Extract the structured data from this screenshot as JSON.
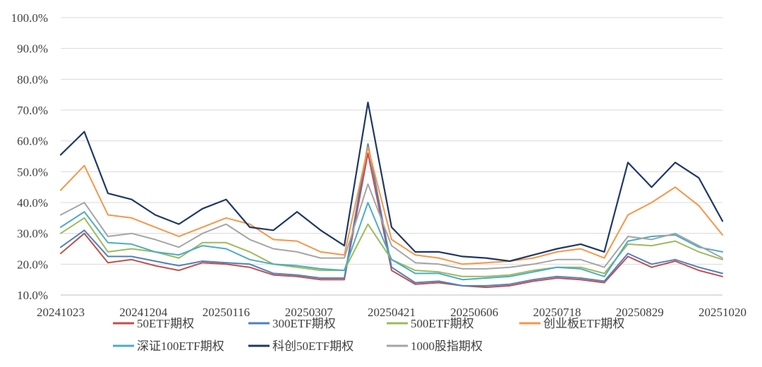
{
  "chart_data": {
    "type": "line",
    "title": "",
    "xlabel": "",
    "ylabel": "",
    "ylim": [
      0.1,
      1.0
    ],
    "y_ticks": [
      "100.0%",
      "90.0%",
      "80.0%",
      "70.0%",
      "60.0%",
      "50.0%",
      "40.0%",
      "30.0%",
      "20.0%",
      "10.0%"
    ],
    "x_ticks": [
      "20241023",
      "20241204",
      "20250116",
      "20250307",
      "20250421",
      "20250606",
      "20250718",
      "20250829",
      "20251020"
    ],
    "grid": "horizontal",
    "legend_position": "bottom",
    "x": [
      "20241023",
      "20241106",
      "20241120",
      "20241204",
      "20241218",
      "20250102",
      "20250116",
      "20250130",
      "20250213",
      "20250227",
      "20250307",
      "20250321",
      "20250403",
      "20250407",
      "20250414",
      "20250421",
      "20250505",
      "20250519",
      "20250606",
      "20250620",
      "20250704",
      "20250718",
      "20250801",
      "20250815",
      "20250829",
      "20250912",
      "20250926",
      "20251010",
      "20251020"
    ],
    "series": [
      {
        "name": "50ETF期权",
        "color": "#c0504d",
        "values": [
          0.235,
          0.3,
          0.205,
          0.215,
          0.195,
          0.18,
          0.205,
          0.2,
          0.19,
          0.165,
          0.16,
          0.15,
          0.15,
          0.56,
          0.18,
          0.135,
          0.14,
          0.13,
          0.125,
          0.13,
          0.145,
          0.155,
          0.15,
          0.14,
          0.225,
          0.19,
          0.21,
          0.18,
          0.16
        ]
      },
      {
        "name": "300ETF期权",
        "color": "#4f81bd",
        "values": [
          0.255,
          0.31,
          0.225,
          0.225,
          0.21,
          0.195,
          0.21,
          0.205,
          0.2,
          0.17,
          0.165,
          0.155,
          0.155,
          0.59,
          0.19,
          0.14,
          0.145,
          0.13,
          0.13,
          0.135,
          0.15,
          0.16,
          0.155,
          0.145,
          0.235,
          0.2,
          0.215,
          0.19,
          0.17
        ]
      },
      {
        "name": "500ETF期权",
        "color": "#9bbb59",
        "values": [
          0.3,
          0.35,
          0.24,
          0.25,
          0.24,
          0.22,
          0.27,
          0.27,
          0.24,
          0.2,
          0.19,
          0.18,
          0.18,
          0.33,
          0.215,
          0.18,
          0.175,
          0.16,
          0.16,
          0.165,
          0.18,
          0.19,
          0.19,
          0.17,
          0.265,
          0.26,
          0.275,
          0.24,
          0.215
        ]
      },
      {
        "name": "创业板ETF期权",
        "color": "#f79646",
        "values": [
          0.44,
          0.52,
          0.36,
          0.35,
          0.32,
          0.29,
          0.32,
          0.35,
          0.33,
          0.28,
          0.275,
          0.24,
          0.23,
          0.58,
          0.28,
          0.23,
          0.22,
          0.2,
          0.205,
          0.21,
          0.22,
          0.24,
          0.25,
          0.22,
          0.36,
          0.4,
          0.45,
          0.39,
          0.295
        ]
      },
      {
        "name": "深证100ETF期权",
        "color": "#4bacc6",
        "values": [
          0.32,
          0.37,
          0.27,
          0.265,
          0.24,
          0.23,
          0.26,
          0.25,
          0.215,
          0.2,
          0.195,
          0.185,
          0.18,
          0.4,
          0.215,
          0.17,
          0.17,
          0.15,
          0.155,
          0.16,
          0.175,
          0.19,
          0.185,
          0.16,
          0.275,
          0.29,
          0.295,
          0.255,
          0.24
        ]
      },
      {
        "name": "科创50ETF期权",
        "color": "#1f3864",
        "values": [
          0.555,
          0.63,
          0.43,
          0.41,
          0.36,
          0.33,
          0.38,
          0.41,
          0.32,
          0.31,
          0.37,
          0.31,
          0.26,
          0.725,
          0.32,
          0.24,
          0.24,
          0.225,
          0.22,
          0.21,
          0.23,
          0.25,
          0.265,
          0.24,
          0.53,
          0.45,
          0.53,
          0.48,
          0.34
        ]
      },
      {
        "name": "1000股指期权",
        "color": "#a5a5a5",
        "values": [
          0.36,
          0.4,
          0.29,
          0.3,
          0.28,
          0.255,
          0.3,
          0.33,
          0.28,
          0.25,
          0.24,
          0.22,
          0.22,
          0.46,
          0.26,
          0.205,
          0.2,
          0.185,
          0.185,
          0.19,
          0.2,
          0.215,
          0.215,
          0.19,
          0.29,
          0.28,
          0.3,
          0.26,
          0.22
        ]
      }
    ]
  }
}
